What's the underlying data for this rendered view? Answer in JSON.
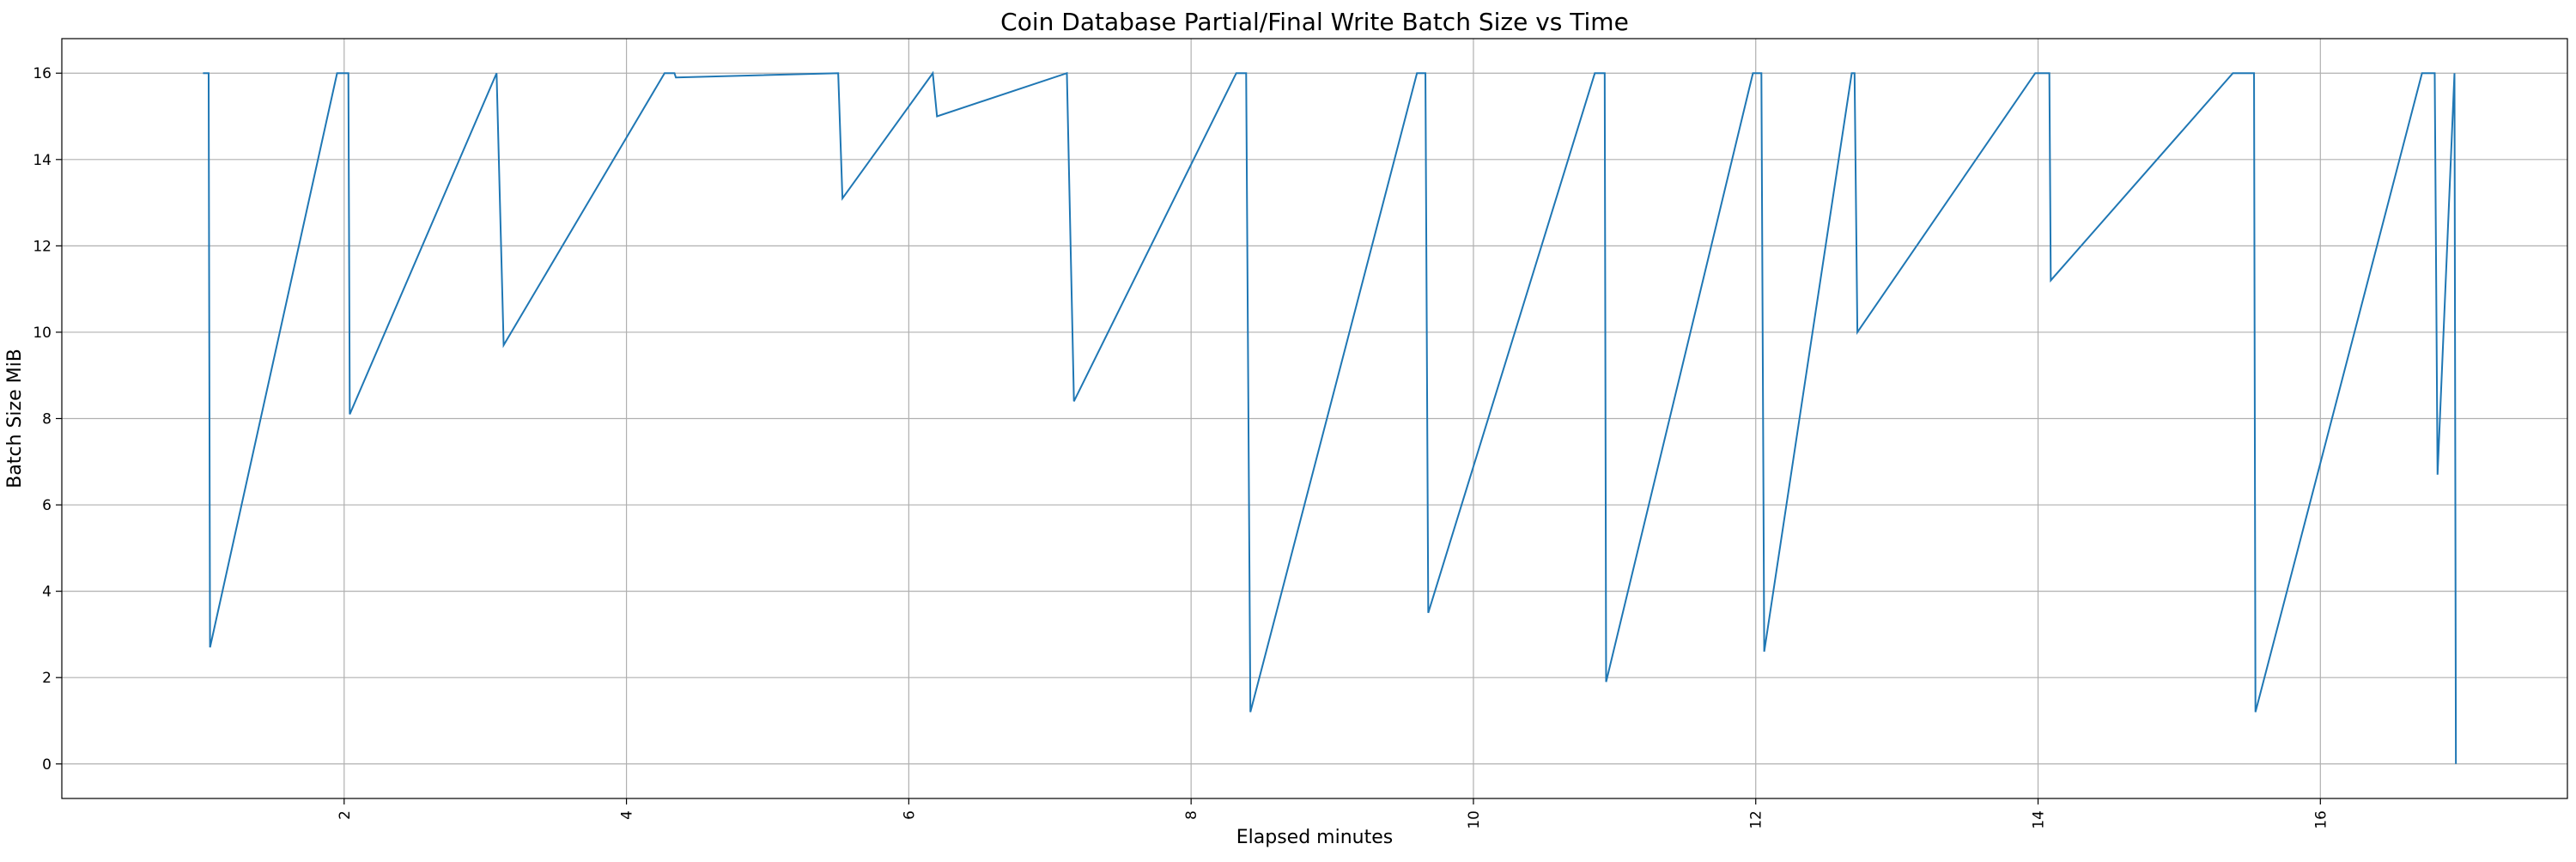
{
  "chart_data": {
    "type": "line",
    "title": "Coin Database Partial/Final Write Batch Size vs Time",
    "xlabel": "Elapsed minutes",
    "ylabel": "Batch Size MiB",
    "xlim": [
      0.0,
      17.75
    ],
    "ylim": [
      -0.8,
      16.8
    ],
    "x_ticks": [
      2,
      4,
      6,
      8,
      10,
      12,
      14,
      16
    ],
    "y_ticks": [
      0,
      2,
      4,
      6,
      8,
      10,
      12,
      14,
      16
    ],
    "x_tick_rotation": "vertical",
    "grid": true,
    "line_color": "#1f77b4",
    "series": [
      {
        "x": [
          1.0,
          1.04,
          1.05,
          1.95,
          2.03,
          2.04,
          3.08,
          3.13,
          4.27,
          4.34,
          4.35,
          5.5,
          5.53,
          6.17,
          6.2,
          7.12,
          7.17,
          8.32,
          8.39,
          8.42,
          9.6,
          9.66,
          9.68,
          10.86,
          10.93,
          10.94,
          11.98,
          12.04,
          12.06,
          12.68,
          12.7,
          12.72,
          13.98,
          14.08,
          14.09,
          15.38,
          15.53,
          15.54,
          16.72,
          16.81,
          16.83,
          16.95,
          16.96
        ],
        "y": [
          16.0,
          16.0,
          2.7,
          16.0,
          16.0,
          8.1,
          16.0,
          9.7,
          16.0,
          16.0,
          15.9,
          16.0,
          13.1,
          16.0,
          15.0,
          16.0,
          8.4,
          16.0,
          16.0,
          1.2,
          16.0,
          16.0,
          3.5,
          16.0,
          16.0,
          1.9,
          16.0,
          16.0,
          2.6,
          16.0,
          16.0,
          10.0,
          16.0,
          16.0,
          11.2,
          16.0,
          16.0,
          1.2,
          16.0,
          16.0,
          6.7,
          16.0,
          0.0
        ]
      }
    ]
  }
}
